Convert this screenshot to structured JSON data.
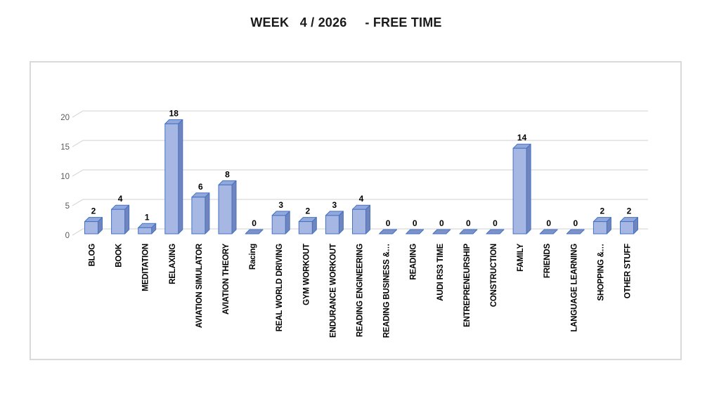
{
  "chart_data": {
    "type": "bar",
    "style": "3d-column",
    "title": "WEEK   4 / 2026     - FREE TIME",
    "categories": [
      "BLOG",
      "BOOK",
      "MEDITATION",
      "RELAXING",
      "AVIATION SIMULATOR",
      "AVIATION THEORY",
      "Racing",
      "REAL WORLD DRIVING",
      "GYM WORKOUT",
      "ENDURANCE WORKOUT",
      "READING ENGINEERING",
      "READING BUSINESS &…",
      "READING",
      "AUDI RS3 TIME",
      "ENTREPRENEURSHIP",
      "CONSTRUCTION",
      "FAMILY",
      "FRIENDS",
      "LANGUAGE LEARNING",
      "SHOPPING &…",
      "OTHER STUFF"
    ],
    "values": [
      2,
      4,
      1,
      18,
      6,
      8,
      0,
      3,
      2,
      3,
      4,
      0,
      0,
      0,
      0,
      0,
      14,
      0,
      0,
      2,
      2
    ],
    "xlabel": "",
    "ylabel": "",
    "ylim": [
      0,
      20
    ],
    "yticks": [
      0,
      5,
      10,
      15,
      20
    ],
    "grid": true,
    "legend": false,
    "data_labels": true
  },
  "colors": {
    "bar_front": "#A7B7E3",
    "bar_top": "#93A8DA",
    "bar_side": "#7184BC",
    "bar_border": "#4472C4",
    "zero_pad": "#7E92CA",
    "gridline": "#D9D9D9",
    "panel_border": "#D9D9D9",
    "axis_text": "#595959",
    "label_text": "#000000",
    "title_text": "#1A1A1A"
  }
}
